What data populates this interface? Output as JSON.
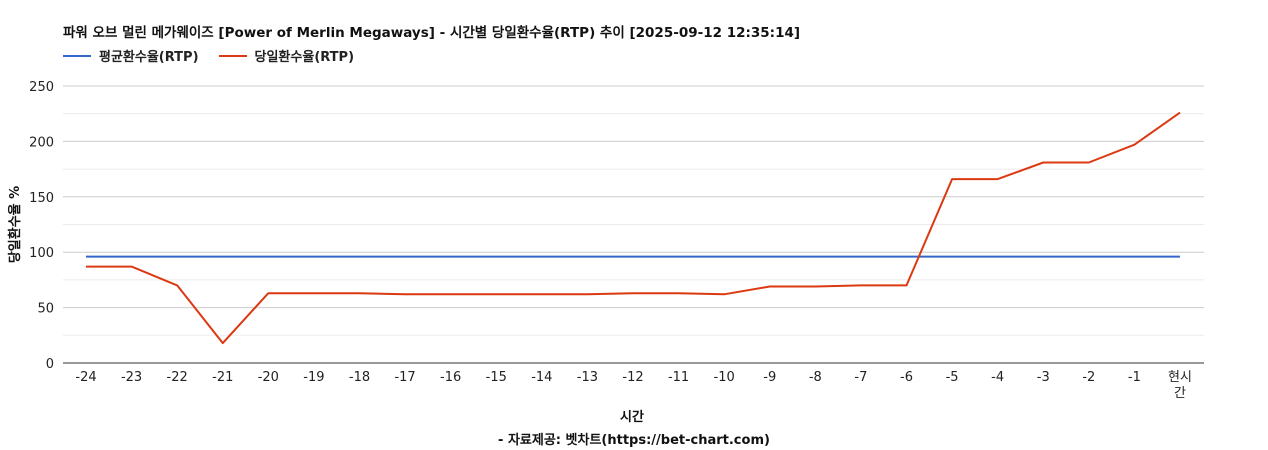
{
  "chart_data": {
    "type": "line",
    "title": "파워 오브 멀린 메가웨이즈 [Power of Merlin Megaways] - 시간별 당일환수율(RTP) 추이 [2025-09-12 12:35:14]",
    "xlabel": "시간",
    "ylabel": "당일환수율 %",
    "source": "- 자료제공: 벳차트(https://bet-chart.com)",
    "categories": [
      "-24",
      "-23",
      "-22",
      "-21",
      "-20",
      "-19",
      "-18",
      "-17",
      "-16",
      "-15",
      "-14",
      "-13",
      "-12",
      "-11",
      "-10",
      "-9",
      "-8",
      "-7",
      "-6",
      "-5",
      "-4",
      "-3",
      "-2",
      "-1",
      "현시간"
    ],
    "yticks": [
      0,
      50,
      100,
      150,
      200,
      250
    ],
    "ylim": [
      0,
      250
    ],
    "grid": true,
    "legend_position": "top-left",
    "series": [
      {
        "name": "평균환수율(RTP)",
        "color": "#3366cc",
        "values": [
          96,
          96,
          96,
          96,
          96,
          96,
          96,
          96,
          96,
          96,
          96,
          96,
          96,
          96,
          96,
          96,
          96,
          96,
          96,
          96,
          96,
          96,
          96,
          96,
          96
        ]
      },
      {
        "name": "당일환수율(RTP)",
        "color": "#dc3912",
        "values": [
          87,
          87,
          70,
          18,
          63,
          63,
          63,
          62,
          62,
          62,
          62,
          62,
          63,
          63,
          62,
          69,
          69,
          70,
          70,
          166,
          166,
          181,
          181,
          197,
          226
        ]
      }
    ]
  }
}
